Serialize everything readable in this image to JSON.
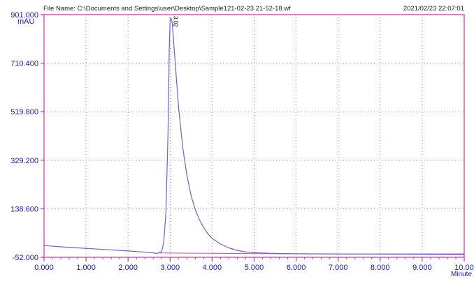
{
  "header": {
    "file_name": "File Name: C:\\Documents and Settings\\user\\Desktop\\Sample121-02-23 21-52-18.wf",
    "timestamp": "2021/02/23 22:07:01"
  },
  "colors": {
    "axis_frame": "#cc2fa8",
    "signal": "#6a63c8",
    "baseline": "#d44ac0",
    "grid": "#8a8a8a",
    "label_text": "#1a1aa8",
    "header_text": "#202020"
  },
  "chart_data": {
    "type": "line",
    "title": "",
    "xlabel": "Minute",
    "ylabel": "mAU",
    "xlim": [
      0,
      10
    ],
    "ylim": [
      -52,
      901
    ],
    "grid": true,
    "legend": "none",
    "x_ticks": [
      "0.000",
      "1.000",
      "2.000",
      "3.000",
      "4.000",
      "5.000",
      "6.000",
      "7.000",
      "8.000",
      "9.000",
      "10.00"
    ],
    "y_ticks": [
      "-52.000",
      "138.600",
      "329.200",
      "519.800",
      "710.400",
      "901.000"
    ],
    "annotations": [
      {
        "x": 3.02,
        "text": "3.02"
      }
    ],
    "series": [
      {
        "x": [
          0,
          0.5,
          1.0,
          1.5,
          2.0,
          2.5,
          2.7,
          2.8,
          2.85,
          2.9,
          2.95,
          2.98,
          3.0,
          3.02,
          3.05,
          3.1,
          3.2,
          3.3,
          3.4,
          3.5,
          3.6,
          3.7,
          3.8,
          3.9,
          4.0,
          4.2,
          4.4,
          4.6,
          4.8,
          5.0,
          5.5,
          6.0,
          7.0,
          8.0,
          9.0,
          10.0
        ],
        "y": [
          -6,
          -12,
          -17,
          -22,
          -27,
          -33,
          -37,
          -30,
          10,
          120,
          430,
          760,
          880,
          888,
          870,
          760,
          540,
          380,
          270,
          190,
          135,
          95,
          65,
          40,
          22,
          0,
          -15,
          -25,
          -31,
          -34,
          -37,
          -38,
          -39,
          -39,
          -39,
          -39
        ]
      },
      {
        "x": [
          2.75,
          10.0
        ],
        "y": [
          -35,
          -42
        ]
      }
    ]
  }
}
